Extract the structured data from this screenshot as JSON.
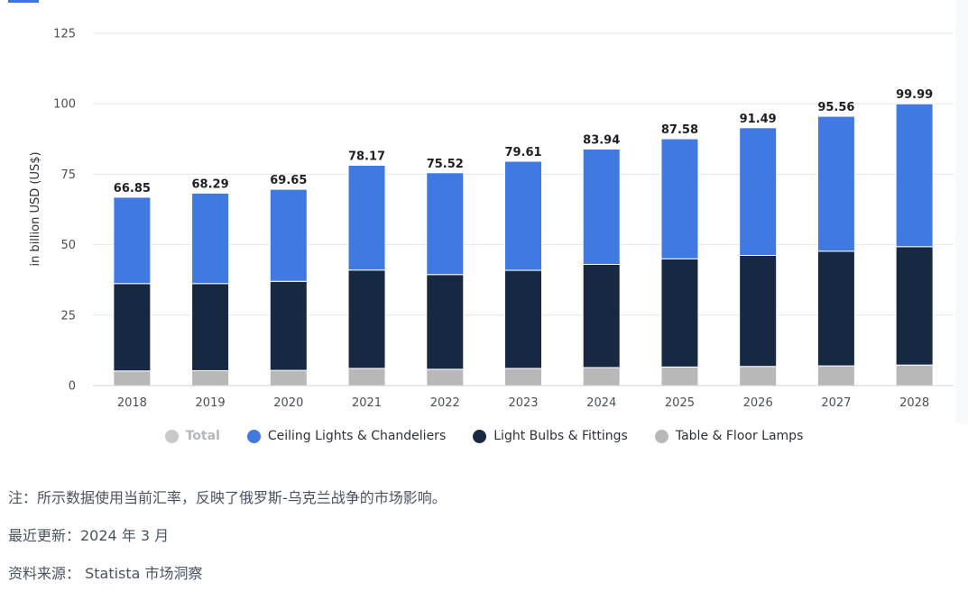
{
  "colors": {
    "accent": "#3e74e0",
    "ceiling": "#4179e2",
    "bulbs": "#172842",
    "lamps": "#b8b8b8",
    "total_muted": "#c9c9c9",
    "grid": "#e6e6e6"
  },
  "chart_data": {
    "type": "bar",
    "stacked": true,
    "categories": [
      "2018",
      "2019",
      "2020",
      "2021",
      "2022",
      "2023",
      "2024",
      "2025",
      "2026",
      "2027",
      "2028"
    ],
    "ylabel": "in billion USD (US$)",
    "xlabel": "",
    "ylim": [
      0,
      125
    ],
    "yticks": [
      0,
      25,
      50,
      75,
      100,
      125
    ],
    "grid": true,
    "legend_position": "bottom",
    "totals": [
      66.85,
      68.29,
      69.65,
      78.17,
      75.52,
      79.61,
      83.94,
      87.58,
      91.49,
      95.56,
      99.99
    ],
    "total_labels": [
      "66.85",
      "68.29",
      "69.65",
      "78.17",
      "75.52",
      "79.61",
      "83.94",
      "87.58",
      "91.49",
      "95.56",
      "99.99"
    ],
    "series": [
      {
        "name": "Table & Floor Lamps",
        "values": [
          5.2,
          5.3,
          5.4,
          6.1,
          5.8,
          6.1,
          6.4,
          6.6,
          6.8,
          7.0,
          7.3
        ]
      },
      {
        "name": "Light Bulbs & Fittings",
        "values": [
          31.0,
          30.9,
          31.6,
          34.9,
          33.6,
          34.8,
          36.6,
          38.4,
          39.4,
          40.7,
          42.0
        ]
      },
      {
        "name": "Ceiling Lights & Chandeliers",
        "values": [
          30.65,
          32.09,
          32.65,
          37.17,
          36.12,
          38.71,
          40.94,
          42.58,
          45.29,
          47.86,
          50.69
        ]
      }
    ]
  },
  "legend": {
    "total": "Total",
    "ceiling": "Ceiling Lights & Chandeliers",
    "bulbs": "Light Bulbs & Fittings",
    "lamps": "Table & Floor Lamps"
  },
  "notes": {
    "note": "注：所示数据使用当前汇率，反映了俄罗斯-乌克兰战争的市场影响。",
    "updated": "最近更新：2024 年 3 月",
    "source": "资料来源： Statista 市场洞察"
  }
}
